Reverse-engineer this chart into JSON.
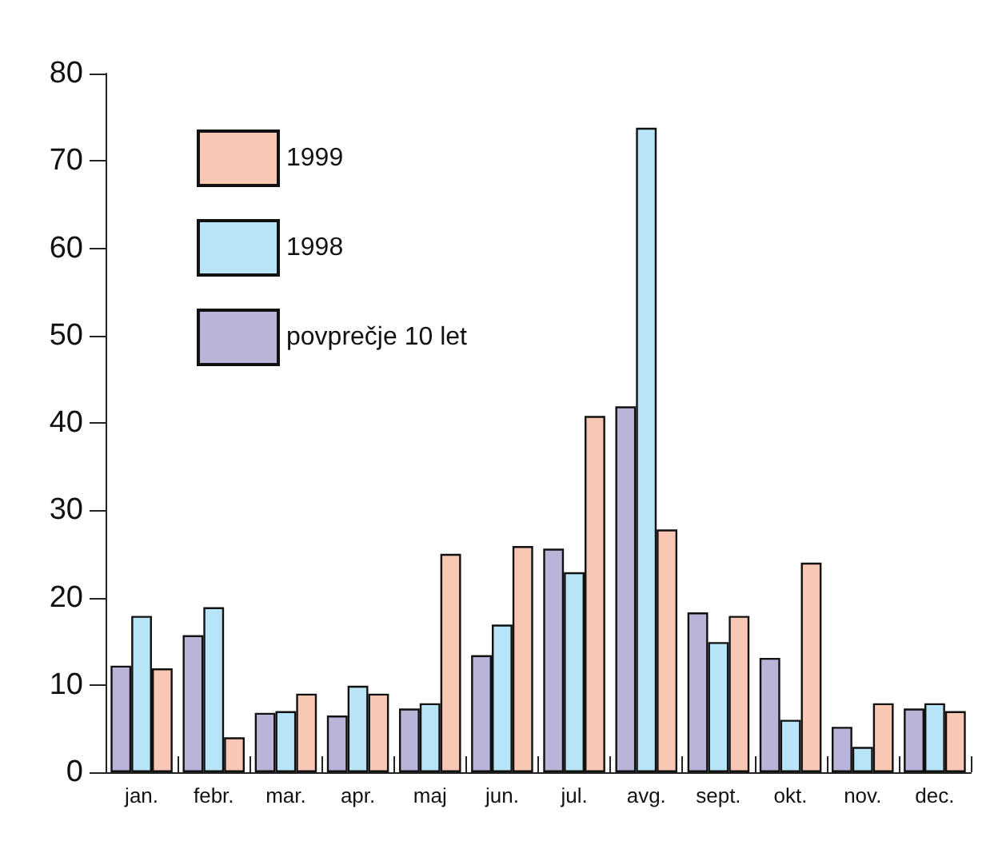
{
  "chart_data": {
    "type": "bar",
    "categories": [
      "jan.",
      "febr.",
      "mar.",
      "apr.",
      "maj",
      "jun.",
      "jul.",
      "avg.",
      "sept.",
      "okt.",
      "nov.",
      "dec."
    ],
    "series": [
      {
        "name": "povprečje 10 let",
        "color": "#b9b5d9",
        "values": [
          12.2,
          15.7,
          6.8,
          6.5,
          7.3,
          13.4,
          25.6,
          41.9,
          18.3,
          13.1,
          5.2,
          7.3
        ]
      },
      {
        "name": "1998",
        "color": "#b8e4f7",
        "values": [
          17.9,
          18.9,
          7.0,
          9.9,
          7.9,
          16.9,
          22.9,
          73.8,
          14.9,
          6.0,
          2.9,
          7.9
        ]
      },
      {
        "name": "1999",
        "color": "#f9c8b4",
        "values": [
          11.9,
          4.0,
          9.0,
          9.0,
          25.0,
          25.9,
          40.8,
          27.8,
          17.9,
          24.0,
          7.9,
          7.0
        ]
      }
    ],
    "ylim": [
      0,
      80
    ],
    "yticks": [
      0,
      10,
      20,
      30,
      40,
      50,
      60,
      70,
      80
    ],
    "grid": false,
    "legend": "top left"
  }
}
